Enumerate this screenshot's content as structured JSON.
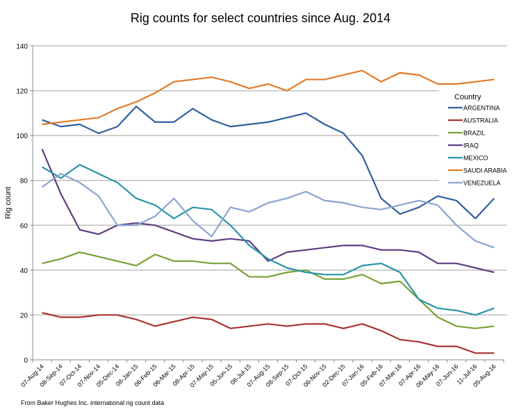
{
  "chart_data": {
    "type": "line",
    "title": "Rig counts for select countries since Aug. 2014",
    "xlabel": "",
    "ylabel": "Rig count",
    "ylim": [
      0,
      140
    ],
    "yticks": [
      0,
      20,
      40,
      60,
      80,
      100,
      120,
      140
    ],
    "grid": true,
    "legend_title": "Country",
    "legend_placement": "right",
    "source_note": "From Baker Hughes Inc. international rig count data",
    "categories": [
      "07-Aug-14",
      "08-Sep-14",
      "07-Oct-14",
      "07-Nov-14",
      "05-Dec-14",
      "08-Jan-15",
      "06-Feb-15",
      "06-Mar-15",
      "08-Apr-15",
      "07-May-15",
      "05-Jun-15",
      "08-Jul-15",
      "07-Aug-15",
      "08-Sep-15",
      "07-Oct-15",
      "06-Nov-15",
      "02-Dec-15",
      "07-Jan-16",
      "05-Feb-16",
      "07-Mar-16",
      "07-Apr-16",
      "06-May-16",
      "07-Jun-16",
      "11-Jul-16",
      "05-Aug-16"
    ],
    "series": [
      {
        "name": "ARGENTINA",
        "color": "#2e5f9e",
        "values": [
          107,
          104,
          105,
          101,
          104,
          113,
          106,
          106,
          112,
          107,
          104,
          105,
          106,
          108,
          110,
          105,
          101,
          91,
          72,
          65,
          68,
          73,
          71,
          63,
          72
        ]
      },
      {
        "name": "AUSTRALIA",
        "color": "#a83232",
        "values": [
          21,
          19,
          19,
          20,
          20,
          18,
          15,
          17,
          19,
          18,
          14,
          15,
          16,
          15,
          16,
          16,
          14,
          16,
          13,
          9,
          8,
          6,
          6,
          3,
          3
        ]
      },
      {
        "name": "BRAZIL",
        "color": "#77a035",
        "values": [
          43,
          45,
          48,
          46,
          44,
          42,
          47,
          44,
          44,
          43,
          43,
          37,
          37,
          39,
          40,
          36,
          36,
          38,
          34,
          35,
          27,
          19,
          15,
          14,
          15
        ]
      },
      {
        "name": "IRAQ",
        "color": "#5e3c82",
        "values": [
          94,
          74,
          58,
          56,
          60,
          61,
          60,
          57,
          54,
          53,
          54,
          53,
          44,
          48,
          49,
          50,
          51,
          51,
          49,
          49,
          48,
          43,
          43,
          41,
          39
        ]
      },
      {
        "name": "MEXICO",
        "color": "#2794a8",
        "values": [
          86,
          81,
          87,
          83,
          79,
          72,
          69,
          63,
          68,
          67,
          60,
          51,
          45,
          41,
          39,
          38,
          38,
          42,
          43,
          39,
          27,
          23,
          22,
          20,
          23
        ]
      },
      {
        "name": "SAUDI ARABIA",
        "color": "#e07b28",
        "values": [
          105,
          106,
          107,
          108,
          112,
          115,
          119,
          124,
          125,
          126,
          124,
          121,
          123,
          120,
          125,
          125,
          127,
          129,
          124,
          128,
          127,
          123,
          123,
          124,
          125
        ]
      },
      {
        "name": "VENEZUELA",
        "color": "#8aa3cf",
        "values": [
          77,
          83,
          79,
          73,
          60,
          60,
          64,
          72,
          62,
          55,
          68,
          66,
          70,
          72,
          75,
          71,
          70,
          68,
          67,
          69,
          71,
          69,
          60,
          53,
          50
        ]
      }
    ]
  }
}
